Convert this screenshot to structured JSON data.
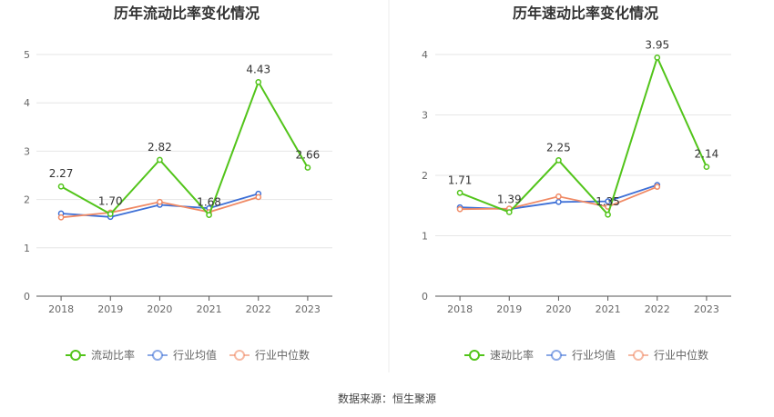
{
  "source_text": "数据来源：恒生聚源",
  "legend": {
    "industry_avg": "行业均值",
    "industry_median": "行业中位数"
  },
  "colors": {
    "primary": "#52c41a",
    "avg": "#3d6fd6",
    "median": "#f08a65",
    "grid": "#e6e6e6",
    "axis": "#555555"
  },
  "chart_data": [
    {
      "type": "line",
      "title": "历年流动比率变化情况",
      "categories": [
        "2018",
        "2019",
        "2020",
        "2021",
        "2022",
        "2023"
      ],
      "ylim": [
        0,
        5
      ],
      "yticks": [
        0,
        1,
        2,
        3,
        4,
        5
      ],
      "series": [
        {
          "name": "流动比率",
          "key": "primary",
          "values": [
            2.27,
            1.7,
            2.82,
            1.68,
            4.43,
            2.66
          ],
          "labels": [
            "2.27",
            "1.70",
            "2.82",
            "1.68",
            "4.43",
            "2.66"
          ]
        },
        {
          "name": "行业均值",
          "key": "avg",
          "values": [
            1.71,
            1.64,
            1.89,
            1.82,
            2.12,
            null
          ]
        },
        {
          "name": "行业中位数",
          "key": "median",
          "values": [
            1.63,
            1.73,
            1.95,
            1.74,
            2.05,
            null
          ]
        }
      ]
    },
    {
      "type": "line",
      "title": "历年速动比率变化情况",
      "categories": [
        "2018",
        "2019",
        "2020",
        "2021",
        "2022",
        "2023"
      ],
      "ylim": [
        0,
        4
      ],
      "yticks": [
        0,
        1,
        2,
        3,
        4
      ],
      "series": [
        {
          "name": "速动比率",
          "key": "primary",
          "values": [
            1.71,
            1.39,
            2.25,
            1.35,
            3.95,
            2.14
          ],
          "labels": [
            "1.71",
            "1.39",
            "2.25",
            "1.35",
            "3.95",
            "2.14"
          ]
        },
        {
          "name": "行业均值",
          "key": "avg",
          "values": [
            1.47,
            1.44,
            1.56,
            1.57,
            1.84,
            null
          ]
        },
        {
          "name": "行业中位数",
          "key": "median",
          "values": [
            1.44,
            1.45,
            1.65,
            1.48,
            1.81,
            null
          ]
        }
      ]
    }
  ]
}
